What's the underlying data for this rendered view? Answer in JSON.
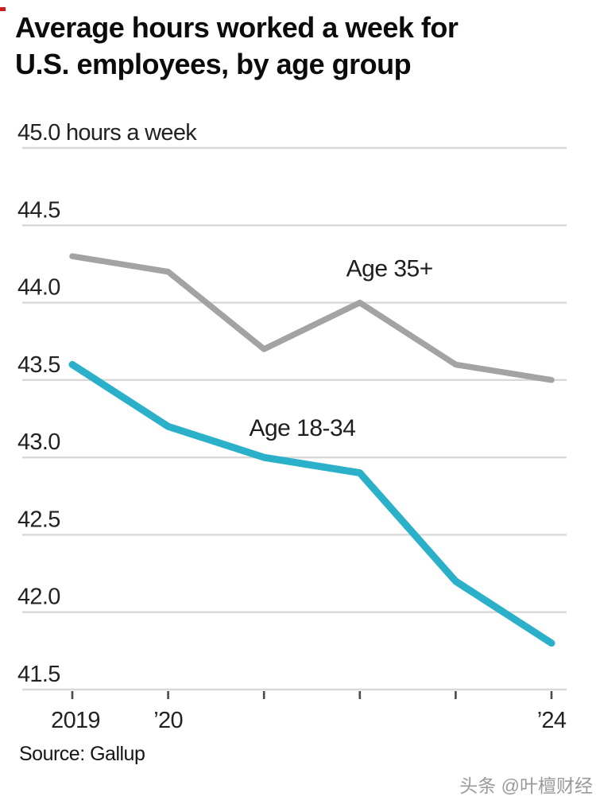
{
  "header": {
    "title_line1": "Average hours worked a week for",
    "title_line2": "U.S. employees, by age group"
  },
  "source": {
    "text": "Source: Gallup"
  },
  "watermark": {
    "text": "头条 @叶檀财经"
  },
  "colors": {
    "background": "#ffffff",
    "gridline": "#d8d8d8",
    "axis_tick": "#4a4a4a",
    "title": "#0b0b0b",
    "teal": "#2bb0c9",
    "gray": "#a3a3a3",
    "red_artifact": "#cf1f1f"
  },
  "chart_data": {
    "type": "line",
    "title": "Average hours worked a week for U.S. employees, by age group",
    "xlabel": "",
    "ylabel": "hours a week",
    "source": "Source: Gallup",
    "x": [
      2019,
      2020,
      2021,
      2022,
      2023,
      2024
    ],
    "x_tick_labels": [
      "2019",
      "’20",
      "",
      "",
      "",
      "’24"
    ],
    "ylim": [
      41.5,
      45.0
    ],
    "grid": true,
    "legend_position": "inline-annotations",
    "y_ticks": [
      {
        "value": 45.0,
        "label": "45.0 hours a week"
      },
      {
        "value": 44.5,
        "label": "44.5"
      },
      {
        "value": 44.0,
        "label": "44.0"
      },
      {
        "value": 43.5,
        "label": "43.5"
      },
      {
        "value": 43.0,
        "label": "43.0"
      },
      {
        "value": 42.5,
        "label": "42.5"
      },
      {
        "value": 42.0,
        "label": "42.0"
      },
      {
        "value": 41.5,
        "label": "41.5"
      }
    ],
    "series": [
      {
        "name": "Age 35+",
        "color": "#a3a3a3",
        "stroke_width": 7.5,
        "values": [
          44.3,
          44.2,
          43.7,
          44.0,
          43.6,
          43.5
        ]
      },
      {
        "name": "Age 18-34",
        "color": "#2bb0c9",
        "stroke_width": 9,
        "values": [
          43.6,
          43.2,
          43.0,
          42.9,
          42.2,
          41.8
        ]
      }
    ],
    "annotations": [
      {
        "text": "Age 35+",
        "x": 2022.31,
        "y": 44.17
      },
      {
        "text": "Age 18-34",
        "x": 2021.4,
        "y": 43.14
      }
    ]
  }
}
